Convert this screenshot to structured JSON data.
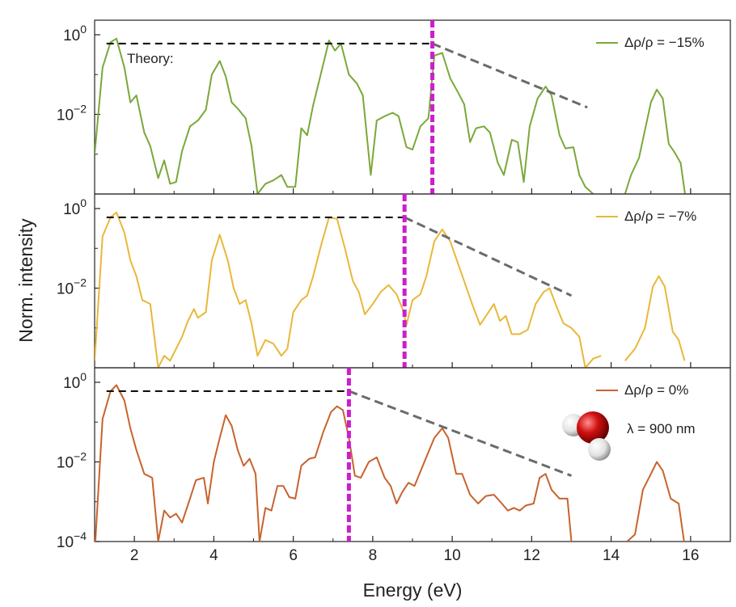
{
  "chart_data": {
    "type": "line",
    "xlabel": "Energy (eV)",
    "ylabel": "Norm. intensity",
    "xlim": [
      1,
      17
    ],
    "x_ticks": [
      "2",
      "4",
      "6",
      "8",
      "10",
      "12",
      "14",
      "16"
    ],
    "y_scale": "log",
    "theory_label": "Theory:",
    "wavelength_label": "λ = 900 nm",
    "molecule_icon": "water-molecule-icon",
    "colors": {
      "theory": "#111111",
      "slope": "#6b6b6b",
      "cutoff": "#cc1ecc"
    },
    "panels": [
      {
        "series_name": "Δρ/ρ = −15%",
        "color": "#7aa83a",
        "ylim": [
          0.0001,
          1
        ],
        "y_ticks": [
          {
            "base": "10",
            "exp": "0",
            "value": 1
          },
          {
            "base": "10",
            "exp": "−2",
            "value": 0.01
          }
        ],
        "cutoff_x": 9.5,
        "theory": {
          "x0": 1.3,
          "y": 0.6
        },
        "slope": {
          "x0": 9.5,
          "y0": 0.6,
          "x1": 13.4,
          "y1": 0.015
        },
        "points": [
          [
            1.0,
            0.001
          ],
          [
            1.2,
            0.15
          ],
          [
            1.4,
            0.65
          ],
          [
            1.55,
            0.8
          ],
          [
            1.75,
            0.15
          ],
          [
            1.9,
            0.02
          ],
          [
            2.05,
            0.03
          ],
          [
            2.25,
            0.0035
          ],
          [
            2.4,
            0.0016
          ],
          [
            2.6,
            0.00025
          ],
          [
            2.75,
            0.0007
          ],
          [
            2.9,
            0.00018
          ],
          [
            3.05,
            0.0002
          ],
          [
            3.2,
            0.0012
          ],
          [
            3.4,
            0.005
          ],
          [
            3.6,
            0.007
          ],
          [
            3.8,
            0.013
          ],
          [
            3.95,
            0.1
          ],
          [
            4.15,
            0.22
          ],
          [
            4.3,
            0.09
          ],
          [
            4.45,
            0.02
          ],
          [
            4.6,
            0.014
          ],
          [
            4.8,
            0.008
          ],
          [
            4.95,
            0.0016
          ],
          [
            5.1,
            0.0001
          ],
          [
            5.3,
            0.00018
          ],
          [
            5.5,
            0.00022
          ],
          [
            5.7,
            0.0003
          ],
          [
            5.85,
            0.00015
          ],
          [
            6.05,
            0.00015
          ],
          [
            6.2,
            0.0045
          ],
          [
            6.35,
            0.003
          ],
          [
            6.5,
            0.017
          ],
          [
            6.7,
            0.11
          ],
          [
            6.9,
            0.72
          ],
          [
            7.05,
            0.4
          ],
          [
            7.2,
            0.6
          ],
          [
            7.4,
            0.1
          ],
          [
            7.6,
            0.06
          ],
          [
            7.75,
            0.03
          ],
          [
            7.95,
            0.0003
          ],
          [
            8.1,
            0.007
          ],
          [
            8.3,
            0.009
          ],
          [
            8.5,
            0.011
          ],
          [
            8.65,
            0.009
          ],
          [
            8.85,
            0.0015
          ],
          [
            9.0,
            0.0013
          ],
          [
            9.2,
            0.005
          ],
          [
            9.4,
            0.008
          ],
          [
            9.55,
            0.3
          ],
          [
            9.75,
            0.35
          ],
          [
            9.95,
            0.08
          ],
          [
            10.15,
            0.035
          ],
          [
            10.3,
            0.018
          ],
          [
            10.45,
            0.002
          ],
          [
            10.6,
            0.0045
          ],
          [
            10.8,
            0.005
          ],
          [
            10.95,
            0.0035
          ],
          [
            11.15,
            0.0006
          ],
          [
            11.3,
            0.0003
          ],
          [
            11.5,
            0.0023
          ],
          [
            11.65,
            0.002
          ],
          [
            11.8,
            0.0002
          ],
          [
            11.95,
            0.005
          ],
          [
            12.15,
            0.025
          ],
          [
            12.35,
            0.05
          ],
          [
            12.5,
            0.03
          ],
          [
            12.7,
            0.003
          ],
          [
            12.85,
            0.0014
          ],
          [
            13.05,
            0.0015
          ],
          [
            13.2,
            0.0003
          ],
          [
            13.35,
            0.00015
          ],
          [
            13.55,
            0.0001
          ],
          [
            13.75,
            5e-05
          ]
        ],
        "points_tail": [
          [
            14.1,
            0.0001
          ],
          [
            14.3,
            7e-05
          ],
          [
            14.5,
            0.0003
          ],
          [
            14.7,
            0.0008
          ],
          [
            14.85,
            0.004
          ],
          [
            15.0,
            0.02
          ],
          [
            15.15,
            0.042
          ],
          [
            15.3,
            0.025
          ],
          [
            15.45,
            0.0018
          ],
          [
            15.6,
            0.0011
          ],
          [
            15.75,
            0.0006
          ],
          [
            15.9,
            5e-05
          ]
        ]
      },
      {
        "series_name": "Δρ/ρ = −7%",
        "color": "#e8b83a",
        "ylim": [
          0.0001,
          1
        ],
        "y_ticks": [
          {
            "base": "10",
            "exp": "0",
            "value": 1
          },
          {
            "base": "10",
            "exp": "−2",
            "value": 0.01
          }
        ],
        "cutoff_x": 8.8,
        "theory": {
          "x0": 1.3,
          "y": 0.6
        },
        "slope": {
          "x0": 8.8,
          "y0": 0.6,
          "x1": 13.0,
          "y1": 0.0065
        },
        "points": [
          [
            1.0,
            0.00015
          ],
          [
            1.2,
            0.2
          ],
          [
            1.4,
            0.6
          ],
          [
            1.55,
            0.8
          ],
          [
            1.75,
            0.25
          ],
          [
            1.9,
            0.05
          ],
          [
            2.05,
            0.02
          ],
          [
            2.2,
            0.005
          ],
          [
            2.4,
            0.004
          ],
          [
            2.6,
            0.0001
          ],
          [
            2.75,
            0.0002
          ],
          [
            2.9,
            0.00015
          ],
          [
            3.05,
            0.0003
          ],
          [
            3.2,
            0.0006
          ],
          [
            3.35,
            0.0015
          ],
          [
            3.5,
            0.003
          ],
          [
            3.6,
            0.0018
          ],
          [
            3.8,
            0.0025
          ],
          [
            3.95,
            0.05
          ],
          [
            4.15,
            0.22
          ],
          [
            4.35,
            0.05
          ],
          [
            4.5,
            0.01
          ],
          [
            4.65,
            0.004
          ],
          [
            4.8,
            0.005
          ],
          [
            4.95,
            0.0013
          ],
          [
            5.1,
            0.0002
          ],
          [
            5.3,
            0.0005
          ],
          [
            5.5,
            0.0004
          ],
          [
            5.7,
            0.0002
          ],
          [
            5.85,
            0.0003
          ],
          [
            6.0,
            0.0025
          ],
          [
            6.2,
            0.005
          ],
          [
            6.35,
            0.0065
          ],
          [
            6.5,
            0.02
          ],
          [
            6.7,
            0.12
          ],
          [
            6.9,
            0.6
          ],
          [
            7.1,
            0.55
          ],
          [
            7.3,
            0.1
          ],
          [
            7.5,
            0.015
          ],
          [
            7.65,
            0.008
          ],
          [
            7.8,
            0.0022
          ],
          [
            8.0,
            0.004
          ],
          [
            8.2,
            0.008
          ],
          [
            8.4,
            0.012
          ],
          [
            8.6,
            0.007
          ],
          [
            8.75,
            0.003
          ],
          [
            8.85,
            0.0012
          ],
          [
            9.0,
            0.005
          ],
          [
            9.2,
            0.007
          ],
          [
            9.35,
            0.02
          ],
          [
            9.55,
            0.15
          ],
          [
            9.75,
            0.3
          ],
          [
            9.95,
            0.15
          ],
          [
            10.15,
            0.04
          ],
          [
            10.3,
            0.015
          ],
          [
            10.5,
            0.004
          ],
          [
            10.7,
            0.0012
          ],
          [
            10.85,
            0.002
          ],
          [
            11.05,
            0.004
          ],
          [
            11.2,
            0.0015
          ],
          [
            11.35,
            0.002
          ],
          [
            11.5,
            0.0007
          ],
          [
            11.7,
            0.0007
          ],
          [
            11.9,
            0.0009
          ],
          [
            12.1,
            0.004
          ],
          [
            12.3,
            0.008
          ],
          [
            12.45,
            0.01
          ],
          [
            12.65,
            0.003
          ],
          [
            12.8,
            0.0013
          ],
          [
            13.0,
            0.001
          ],
          [
            13.2,
            0.0006
          ],
          [
            13.35,
            0.0001
          ],
          [
            13.55,
            0.00017
          ],
          [
            13.75,
            0.0002
          ]
        ],
        "points_tail": [
          [
            14.35,
            0.00015
          ],
          [
            14.6,
            0.0003
          ],
          [
            14.85,
            0.001
          ],
          [
            15.05,
            0.011
          ],
          [
            15.2,
            0.02
          ],
          [
            15.35,
            0.011
          ],
          [
            15.55,
            0.0008
          ],
          [
            15.7,
            0.0005
          ],
          [
            15.85,
            0.00015
          ]
        ]
      },
      {
        "series_name": "Δρ/ρ = 0%",
        "color": "#c8632e",
        "ylim": [
          0.0001,
          1
        ],
        "y_ticks": [
          {
            "base": "10",
            "exp": "0",
            "value": 1
          },
          {
            "base": "10",
            "exp": "−2",
            "value": 0.01
          },
          {
            "base": "10",
            "exp": "−4",
            "value": 0.0001
          }
        ],
        "cutoff_x": 7.4,
        "theory": {
          "x0": 1.3,
          "y": 0.6
        },
        "slope": {
          "x0": 7.4,
          "y0": 0.6,
          "x1": 13.0,
          "y1": 0.0045
        },
        "points": [
          [
            1.0,
            5e-05
          ],
          [
            1.2,
            0.12
          ],
          [
            1.4,
            0.6
          ],
          [
            1.55,
            0.85
          ],
          [
            1.75,
            0.35
          ],
          [
            1.9,
            0.07
          ],
          [
            2.05,
            0.02
          ],
          [
            2.25,
            0.005
          ],
          [
            2.45,
            0.004
          ],
          [
            2.6,
            0.0001
          ],
          [
            2.75,
            0.0006
          ],
          [
            2.9,
            0.0004
          ],
          [
            3.05,
            0.0005
          ],
          [
            3.2,
            0.0003
          ],
          [
            3.4,
            0.0012
          ],
          [
            3.55,
            0.0035
          ],
          [
            3.75,
            0.004
          ],
          [
            3.85,
            0.0009
          ],
          [
            4.0,
            0.01
          ],
          [
            4.15,
            0.04
          ],
          [
            4.3,
            0.15
          ],
          [
            4.45,
            0.08
          ],
          [
            4.6,
            0.02
          ],
          [
            4.75,
            0.008
          ],
          [
            4.9,
            0.012
          ],
          [
            5.05,
            0.005
          ],
          [
            5.15,
            0.0001
          ],
          [
            5.3,
            0.0007
          ],
          [
            5.45,
            0.0006
          ],
          [
            5.6,
            0.0025
          ],
          [
            5.75,
            0.0025
          ],
          [
            5.9,
            0.0013
          ],
          [
            6.05,
            0.0012
          ],
          [
            6.2,
            0.008
          ],
          [
            6.4,
            0.012
          ],
          [
            6.55,
            0.013
          ],
          [
            6.75,
            0.055
          ],
          [
            6.95,
            0.18
          ],
          [
            7.1,
            0.25
          ],
          [
            7.25,
            0.2
          ],
          [
            7.4,
            0.04
          ],
          [
            7.55,
            0.0045
          ],
          [
            7.7,
            0.004
          ],
          [
            7.9,
            0.01
          ],
          [
            8.1,
            0.013
          ],
          [
            8.3,
            0.004
          ],
          [
            8.45,
            0.0025
          ],
          [
            8.6,
            0.0009
          ],
          [
            8.75,
            0.0018
          ],
          [
            8.9,
            0.003
          ],
          [
            9.05,
            0.0025
          ],
          [
            9.3,
            0.01
          ],
          [
            9.55,
            0.04
          ],
          [
            9.75,
            0.07
          ],
          [
            9.9,
            0.04
          ],
          [
            10.1,
            0.005
          ],
          [
            10.25,
            0.005
          ],
          [
            10.45,
            0.0015
          ],
          [
            10.65,
            0.0009
          ],
          [
            10.85,
            0.0014
          ],
          [
            11.05,
            0.0015
          ],
          [
            11.25,
            0.0009
          ],
          [
            11.4,
            0.0006
          ],
          [
            11.55,
            0.0007
          ],
          [
            11.7,
            0.0006
          ],
          [
            11.85,
            0.0008
          ],
          [
            12.05,
            0.0009
          ],
          [
            12.2,
            0.004
          ],
          [
            12.35,
            0.005
          ],
          [
            12.5,
            0.002
          ],
          [
            12.7,
            0.0012
          ],
          [
            12.9,
            0.0012
          ],
          [
            13.0,
            0.0001
          ],
          [
            13.25,
            5e-05
          ]
        ],
        "points_tail": [
          [
            14.4,
            0.0001
          ],
          [
            14.6,
            0.00015
          ],
          [
            14.8,
            0.002
          ],
          [
            15.0,
            0.005
          ],
          [
            15.15,
            0.01
          ],
          [
            15.3,
            0.006
          ],
          [
            15.5,
            0.0012
          ],
          [
            15.7,
            0.0009
          ],
          [
            15.85,
            8e-05
          ]
        ]
      }
    ]
  }
}
